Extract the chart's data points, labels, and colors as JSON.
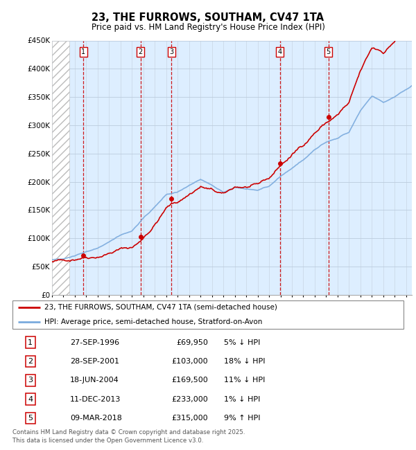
{
  "title": "23, THE FURROWS, SOUTHAM, CV47 1TA",
  "subtitle": "Price paid vs. HM Land Registry's House Price Index (HPI)",
  "ylim": [
    0,
    450000
  ],
  "xlim_start": 1994.0,
  "xlim_end": 2025.5,
  "yticks": [
    0,
    50000,
    100000,
    150000,
    200000,
    250000,
    300000,
    350000,
    400000,
    450000
  ],
  "ytick_labels": [
    "£0",
    "£50K",
    "£100K",
    "£150K",
    "£200K",
    "£250K",
    "£300K",
    "£350K",
    "£400K",
    "£450K"
  ],
  "hatch_end": 1995.5,
  "transactions": [
    {
      "num": 1,
      "date": "27-SEP-1996",
      "x": 1996.74,
      "price": 69950,
      "pct": "5%",
      "dir": "↓"
    },
    {
      "num": 2,
      "date": "28-SEP-2001",
      "x": 2001.74,
      "price": 103000,
      "pct": "18%",
      "dir": "↓"
    },
    {
      "num": 3,
      "date": "18-JUN-2004",
      "x": 2004.46,
      "price": 169500,
      "pct": "11%",
      "dir": "↓"
    },
    {
      "num": 4,
      "date": "11-DEC-2013",
      "x": 2013.94,
      "price": 233000,
      "pct": "1%",
      "dir": "↓"
    },
    {
      "num": 5,
      "date": "09-MAR-2018",
      "x": 2018.19,
      "price": 315000,
      "pct": "9%",
      "dir": "↑"
    }
  ],
  "legend_line1": "23, THE FURROWS, SOUTHAM, CV47 1TA (semi-detached house)",
  "legend_line2": "HPI: Average price, semi-detached house, Stratford-on-Avon",
  "footer": "Contains HM Land Registry data © Crown copyright and database right 2025.\nThis data is licensed under the Open Government Licence v3.0.",
  "red_color": "#cc0000",
  "blue_color": "#7aaadd",
  "grid_color": "#ccd9e8",
  "background_color": "#ffffff",
  "plot_bg": "#ddeeff"
}
